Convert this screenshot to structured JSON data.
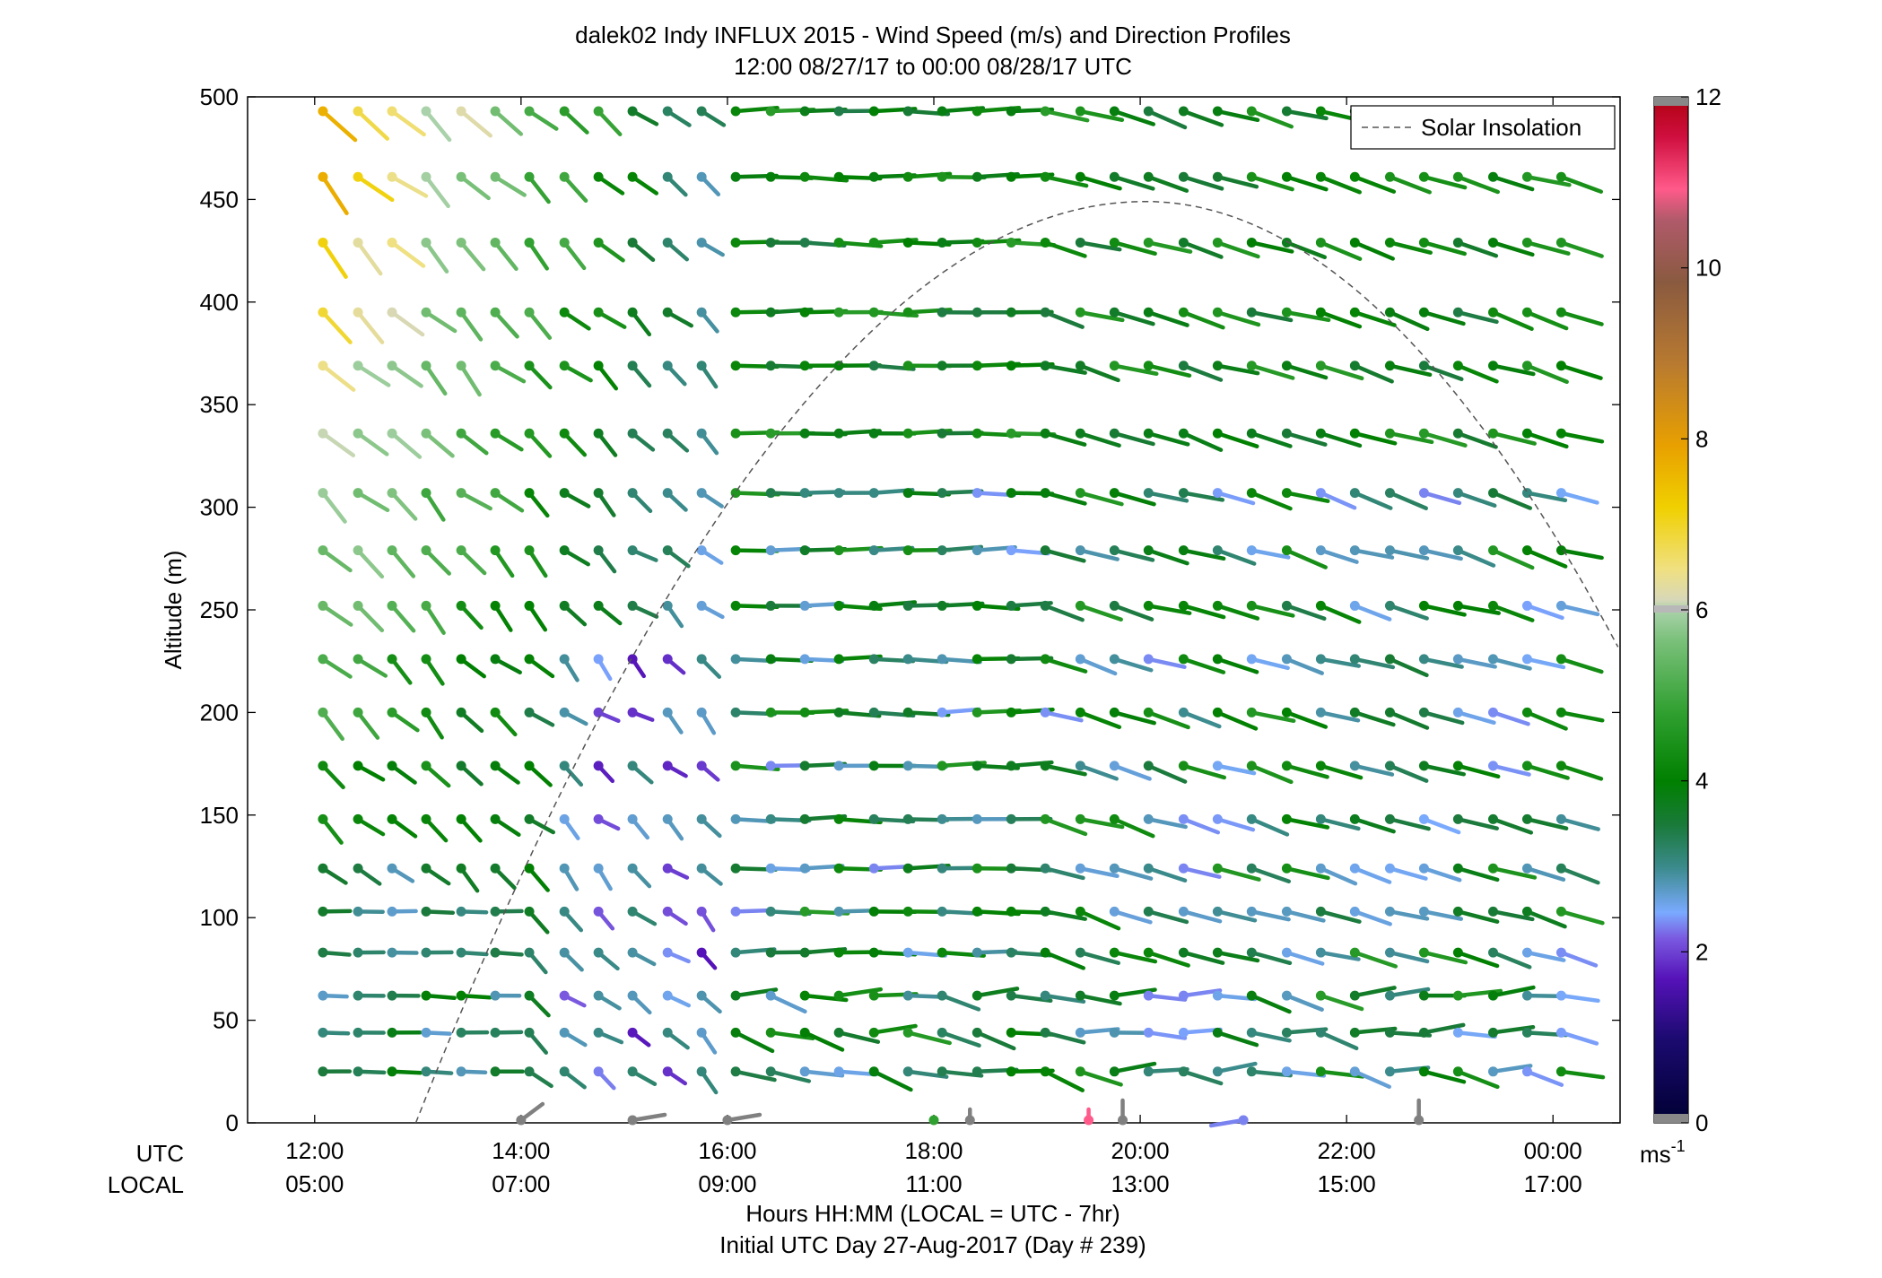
{
  "chart_data": {
    "type": "scatter",
    "title": "dalek02 Indy INFLUX 2015 - Wind Speed (m/s) and Direction Profiles",
    "subtitle": "12:00 08/27/17 to 00:00 08/28/17  UTC",
    "ylabel": "Altitude (m)",
    "xlabel": "Hours HH:MM  (LOCAL = UTC - 7hr)",
    "xlabel2": "Initial UTC Day 27-Aug-2017 (Day # 239)",
    "row_labels": {
      "utc": "UTC",
      "local": "LOCAL"
    },
    "x_range_hours": [
      11.35,
      24.65
    ],
    "ylim": [
      0,
      500
    ],
    "y_ticks": [
      0,
      50,
      100,
      150,
      200,
      250,
      300,
      350,
      400,
      450,
      500
    ],
    "x_ticks": [
      {
        "hour": 12,
        "utc": "12:00",
        "local": "05:00"
      },
      {
        "hour": 14,
        "utc": "14:00",
        "local": "07:00"
      },
      {
        "hour": 16,
        "utc": "16:00",
        "local": "09:00"
      },
      {
        "hour": 18,
        "utc": "18:00",
        "local": "11:00"
      },
      {
        "hour": 20,
        "utc": "20:00",
        "local": "13:00"
      },
      {
        "hour": 22,
        "utc": "22:00",
        "local": "15:00"
      },
      {
        "hour": 24,
        "utc": "00:00",
        "local": "17:00"
      }
    ],
    "grid": false,
    "legend": {
      "position": "top-right",
      "entries": [
        {
          "label": "Solar Insolation",
          "style": "dashed",
          "color": "#555555"
        }
      ]
    },
    "colorbar": {
      "min": 0,
      "max": 12,
      "ticks": [
        0,
        2,
        4,
        6,
        8,
        10,
        12
      ],
      "unit": "ms",
      "unit_exp": "-1"
    },
    "solar_insolation": {
      "peak_hour": 20.05,
      "peak_altitude": 449,
      "start_hour": 12.98,
      "end_hour": 24.65,
      "end_altitude": 230
    },
    "wind_barbs": {
      "altitudes": [
        25,
        44,
        62,
        83,
        103,
        124,
        148,
        174,
        200,
        226,
        252,
        279,
        307,
        336,
        369,
        395,
        429,
        461,
        493
      ],
      "hours": [
        12.08,
        12.42,
        12.75,
        13.08,
        13.42,
        13.75,
        14.08,
        14.42,
        14.75,
        15.08,
        15.42,
        15.75,
        16.08,
        16.42,
        16.75,
        17.08,
        17.42,
        17.75,
        18.08,
        18.42,
        18.75,
        19.08,
        19.42,
        19.75,
        20.08,
        20.42,
        20.75,
        21.08,
        21.42,
        21.75,
        22.08,
        22.42,
        22.75,
        23.08,
        23.42,
        23.75,
        24.08
      ],
      "morning_end_hour": 16.0,
      "note_speed_range_morning": [
        1.5,
        8.0
      ],
      "note_speed_range_afternoon": [
        2.0,
        4.5
      ]
    },
    "surface_obs": [
      {
        "hour": 14.0,
        "speed": 0.0
      },
      {
        "hour": 15.08,
        "speed": 0.0
      },
      {
        "hour": 16.0,
        "speed": 0.0
      },
      {
        "hour": 18.0,
        "speed": 4.5
      },
      {
        "hour": 18.35,
        "speed": 0.0
      },
      {
        "hour": 19.5,
        "speed": 11.0
      },
      {
        "hour": 19.83,
        "speed": 0.0
      },
      {
        "hour": 21.0,
        "speed": 2.2
      },
      {
        "hour": 22.7,
        "speed": 0.0
      }
    ]
  }
}
